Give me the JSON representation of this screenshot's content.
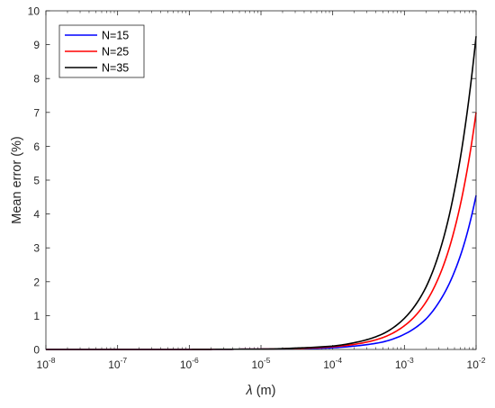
{
  "chart_data": {
    "type": "line",
    "xlabel_symbol": "λ",
    "xlabel_unit": " (m)",
    "ylabel": "Mean error (%)",
    "x_scale": "log",
    "xlim": [
      1e-08,
      0.01
    ],
    "ylim": [
      0,
      10
    ],
    "x_ticks": [
      {
        "base": "10",
        "exp": "-8"
      },
      {
        "base": "10",
        "exp": "-7"
      },
      {
        "base": "10",
        "exp": "-6"
      },
      {
        "base": "10",
        "exp": "-5"
      },
      {
        "base": "10",
        "exp": "-4"
      },
      {
        "base": "10",
        "exp": "-3"
      },
      {
        "base": "10",
        "exp": "-2"
      }
    ],
    "y_ticks": [
      "0",
      "1",
      "2",
      "3",
      "4",
      "5",
      "6",
      "7",
      "8",
      "9",
      "10"
    ],
    "grid": false,
    "legend_position": "top-left",
    "x": [
      1e-08,
      1e-07,
      1e-06,
      1e-05,
      3e-05,
      0.0001,
      0.0002,
      0.0005,
      0.001,
      0.002,
      0.003,
      0.005,
      0.007,
      0.01
    ],
    "series": [
      {
        "name": "N=15",
        "color": "#0000ff",
        "values": [
          0.0,
          0.0,
          0.0,
          0.01,
          0.02,
          0.05,
          0.1,
          0.22,
          0.45,
          0.9,
          1.38,
          2.3,
          3.2,
          4.55
        ]
      },
      {
        "name": "N=25",
        "color": "#ff0000",
        "values": [
          0.0,
          0.0,
          0.0,
          0.01,
          0.03,
          0.08,
          0.15,
          0.35,
          0.7,
          1.4,
          2.12,
          3.55,
          4.95,
          7.0
        ]
      },
      {
        "name": "N=35",
        "color": "#000000",
        "values": [
          0.0,
          0.0,
          0.0,
          0.01,
          0.04,
          0.1,
          0.2,
          0.46,
          0.92,
          1.84,
          2.8,
          4.7,
          6.55,
          9.25
        ]
      }
    ]
  }
}
